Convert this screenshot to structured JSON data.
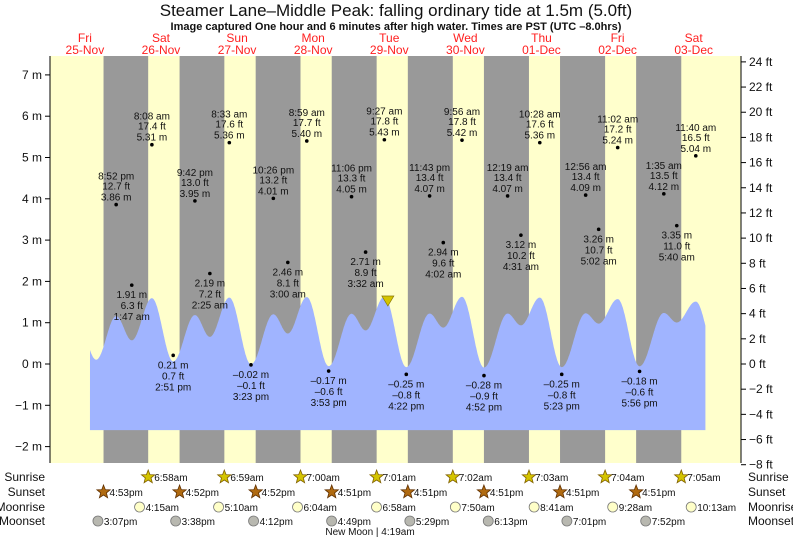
{
  "title": "Steamer Lane–Middle Peak: falling  ordinary tide at 1.5m (5.0ft)",
  "subtitle": "Image captured One hour and 6 minutes after high water. Times are PST (UTC –8.0hrs)",
  "colors": {
    "day": "#ffffcc",
    "night": "#999999",
    "water": "#a0b4ff",
    "day_label": "#ff2020",
    "sunrise": "#d4c400",
    "sunset": "#b06a10",
    "moonrise": "#ffffc8",
    "moonset": "#b8b8b0",
    "marker": "#d4c400"
  },
  "chart_data": {
    "type": "area",
    "title": "Steamer Lane–Middle Peak: falling  ordinary tide at 1.5m (5.0ft)",
    "current": {
      "height_m": 1.5,
      "height_ft": 5.0,
      "after_high": "1 hour 6 minutes"
    },
    "days": [
      {
        "dow": "Fri",
        "date": "25-Nov"
      },
      {
        "dow": "Sat",
        "date": "26-Nov"
      },
      {
        "dow": "Sun",
        "date": "27-Nov"
      },
      {
        "dow": "Mon",
        "date": "28-Nov"
      },
      {
        "dow": "Tue",
        "date": "29-Nov"
      },
      {
        "dow": "Wed",
        "date": "30-Nov"
      },
      {
        "dow": "Thu",
        "date": "01-Dec"
      },
      {
        "dow": "Fri",
        "date": "02-Dec"
      },
      {
        "dow": "Sat",
        "date": "03-Dec"
      }
    ],
    "left_axis": {
      "unit": "m",
      "range": [
        -2,
        7
      ],
      "ticks": [
        "7 m",
        "6 m",
        "5 m",
        "4 m",
        "3 m",
        "2 m",
        "1 m",
        "0 m",
        "−1 m",
        "−2 m"
      ]
    },
    "right_axis": {
      "unit": "ft",
      "range": [
        -8,
        24
      ],
      "ticks": [
        "24 ft",
        "22 ft",
        "20 ft",
        "18 ft",
        "16 ft",
        "14 ft",
        "12 ft",
        "10 ft",
        "8 ft",
        "6 ft",
        "4 ft",
        "2 ft",
        "0 ft",
        "−2 ft",
        "−4 ft",
        "−6 ft",
        "−8 ft"
      ]
    },
    "extremes": [
      {
        "date": "25-Nov",
        "time": "8:52 pm",
        "ft": "12.7 ft",
        "m": "3.86 m",
        "type": "high",
        "value": 3.86
      },
      {
        "date": "26-Nov",
        "time": "1:47 am",
        "ft": "6.3 ft",
        "m": "1.91 m",
        "type": "low",
        "value": 1.91
      },
      {
        "date": "26-Nov",
        "time": "8:08 am",
        "ft": "17.4 ft",
        "m": "5.31 m",
        "type": "high",
        "value": 5.31
      },
      {
        "date": "26-Nov",
        "time": "2:51 pm",
        "ft": "0.7 ft",
        "m": "0.21 m",
        "type": "low",
        "value": 0.21
      },
      {
        "date": "26-Nov",
        "time": "9:42 pm",
        "ft": "13.0 ft",
        "m": "3.95 m",
        "type": "high",
        "value": 3.95
      },
      {
        "date": "27-Nov",
        "time": "2:25 am",
        "ft": "7.2 ft",
        "m": "2.19 m",
        "type": "low",
        "value": 2.19
      },
      {
        "date": "27-Nov",
        "time": "8:33 am",
        "ft": "17.6 ft",
        "m": "5.36 m",
        "type": "high",
        "value": 5.36
      },
      {
        "date": "27-Nov",
        "time": "3:23 pm",
        "ft": "–0.1 ft",
        "m": "–0.02 m",
        "type": "low",
        "value": -0.02
      },
      {
        "date": "27-Nov",
        "time": "10:26 pm",
        "ft": "13.2 ft",
        "m": "4.01 m",
        "type": "high",
        "value": 4.01
      },
      {
        "date": "28-Nov",
        "time": "3:00 am",
        "ft": "8.1 ft",
        "m": "2.46 m",
        "type": "low",
        "value": 2.46
      },
      {
        "date": "28-Nov",
        "time": "8:59 am",
        "ft": "17.7 ft",
        "m": "5.40 m",
        "type": "high",
        "value": 5.4
      },
      {
        "date": "28-Nov",
        "time": "3:53 pm",
        "ft": "–0.6 ft",
        "m": "–0.17 m",
        "type": "low",
        "value": -0.17
      },
      {
        "date": "28-Nov",
        "time": "11:06 pm",
        "ft": "13.3 ft",
        "m": "4.05 m",
        "type": "high",
        "value": 4.05
      },
      {
        "date": "29-Nov",
        "time": "3:32 am",
        "ft": "8.9 ft",
        "m": "2.71 m",
        "type": "low",
        "value": 2.71
      },
      {
        "date": "29-Nov",
        "time": "9:27 am",
        "ft": "17.8 ft",
        "m": "5.43 m",
        "type": "high",
        "value": 5.43
      },
      {
        "date": "29-Nov",
        "time": "4:22 pm",
        "ft": "–0.8 ft",
        "m": "–0.25 m",
        "type": "low",
        "value": -0.25
      },
      {
        "date": "29-Nov",
        "time": "11:43 pm",
        "ft": "13.4 ft",
        "m": "4.07 m",
        "type": "high",
        "value": 4.07
      },
      {
        "date": "30-Nov",
        "time": "4:02 am",
        "ft": "9.6 ft",
        "m": "2.94 m",
        "type": "low",
        "value": 2.94
      },
      {
        "date": "30-Nov",
        "time": "9:56 am",
        "ft": "17.8 ft",
        "m": "5.42 m",
        "type": "high",
        "value": 5.42
      },
      {
        "date": "30-Nov",
        "time": "4:52 pm",
        "ft": "–0.9 ft",
        "m": "–0.28 m",
        "type": "low",
        "value": -0.28
      },
      {
        "date": "01-Dec",
        "time": "12:19 am",
        "ft": "13.4 ft",
        "m": "4.07 m",
        "type": "high",
        "value": 4.07
      },
      {
        "date": "01-Dec",
        "time": "4:31 am",
        "ft": "10.2 ft",
        "m": "3.12 m",
        "type": "low",
        "value": 3.12
      },
      {
        "date": "01-Dec",
        "time": "10:28 am",
        "ft": "17.6 ft",
        "m": "5.36 m",
        "type": "high",
        "value": 5.36
      },
      {
        "date": "01-Dec",
        "time": "5:23 pm",
        "ft": "–0.8 ft",
        "m": "–0.25 m",
        "type": "low",
        "value": -0.25
      },
      {
        "date": "02-Dec",
        "time": "12:56 am",
        "ft": "13.4 ft",
        "m": "4.09 m",
        "type": "high",
        "value": 4.09
      },
      {
        "date": "02-Dec",
        "time": "5:02 am",
        "ft": "10.7 ft",
        "m": "3.26 m",
        "type": "low",
        "value": 3.26
      },
      {
        "date": "02-Dec",
        "time": "11:02 am",
        "ft": "17.2 ft",
        "m": "5.24 m",
        "type": "high",
        "value": 5.24
      },
      {
        "date": "02-Dec",
        "time": "5:56 pm",
        "ft": "–0.6 ft",
        "m": "–0.18 m",
        "type": "low",
        "value": -0.18
      },
      {
        "date": "03-Dec",
        "time": "1:35 am",
        "ft": "13.5 ft",
        "m": "4.12 m",
        "type": "high",
        "value": 4.12
      },
      {
        "date": "03-Dec",
        "time": "5:40 am",
        "ft": "11.0 ft",
        "m": "3.35 m",
        "type": "low",
        "value": 3.35
      },
      {
        "date": "03-Dec",
        "time": "11:40 am",
        "ft": "16.5 ft",
        "m": "5.04 m",
        "type": "high",
        "value": 5.04
      }
    ]
  },
  "almanac": {
    "row_labels": {
      "sunrise": "Sunrise",
      "sunset": "Sunset",
      "moonrise": "Moonrise",
      "moonset": "Moonset"
    },
    "sunrise": [
      {
        "date": "26-Nov",
        "time": "6:58am"
      },
      {
        "date": "27-Nov",
        "time": "6:59am"
      },
      {
        "date": "28-Nov",
        "time": "7:00am"
      },
      {
        "date": "29-Nov",
        "time": "7:01am"
      },
      {
        "date": "30-Nov",
        "time": "7:02am"
      },
      {
        "date": "01-Dec",
        "time": "7:03am"
      },
      {
        "date": "02-Dec",
        "time": "7:04am"
      },
      {
        "date": "03-Dec",
        "time": "7:05am"
      }
    ],
    "sunset": [
      {
        "date": "25-Nov",
        "time": "4:53pm"
      },
      {
        "date": "26-Nov",
        "time": "4:52pm"
      },
      {
        "date": "27-Nov",
        "time": "4:52pm"
      },
      {
        "date": "28-Nov",
        "time": "4:51pm"
      },
      {
        "date": "29-Nov",
        "time": "4:51pm"
      },
      {
        "date": "30-Nov",
        "time": "4:51pm"
      },
      {
        "date": "01-Dec",
        "time": "4:51pm"
      },
      {
        "date": "02-Dec",
        "time": "4:51pm"
      }
    ],
    "moonrise": [
      {
        "date": "26-Nov",
        "time": "4:15am"
      },
      {
        "date": "27-Nov",
        "time": "5:10am"
      },
      {
        "date": "28-Nov",
        "time": "6:04am"
      },
      {
        "date": "29-Nov",
        "time": "6:58am"
      },
      {
        "date": "30-Nov",
        "time": "7:50am"
      },
      {
        "date": "01-Dec",
        "time": "8:41am"
      },
      {
        "date": "02-Dec",
        "time": "9:28am"
      },
      {
        "date": "03-Dec",
        "time": "10:13am"
      }
    ],
    "moonset": [
      {
        "date": "25-Nov",
        "time": "3:07pm"
      },
      {
        "date": "26-Nov",
        "time": "3:38pm"
      },
      {
        "date": "27-Nov",
        "time": "4:12pm"
      },
      {
        "date": "28-Nov",
        "time": "4:49pm"
      },
      {
        "date": "29-Nov",
        "time": "5:29pm"
      },
      {
        "date": "30-Nov",
        "time": "6:13pm"
      },
      {
        "date": "01-Dec",
        "time": "7:01pm"
      },
      {
        "date": "02-Dec",
        "time": "7:52pm"
      }
    ],
    "moon_phase": "New Moon | 4:19am"
  }
}
